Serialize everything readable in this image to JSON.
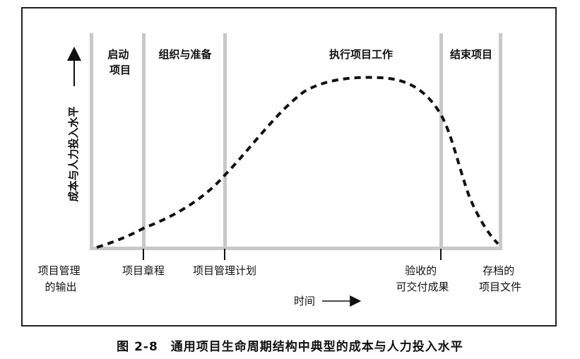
{
  "phases": [
    {
      "label_lines": [
        "启动",
        "项目"
      ]
    },
    {
      "label_lines": [
        "组织与准备"
      ]
    },
    {
      "label_lines": [
        "执行项目工作"
      ]
    },
    {
      "label_lines": [
        "结束项目"
      ]
    }
  ],
  "y_axis_label": "成本与人力投入水平",
  "time_label": "时间",
  "milestones": [
    {
      "label_lines": [
        "项目管理",
        "的输出"
      ]
    },
    {
      "label_lines": [
        "项目章程"
      ]
    },
    {
      "label_lines": [
        "项目管理计划"
      ]
    },
    {
      "label_lines": [
        "验收的",
        "可交付成果"
      ]
    },
    {
      "label_lines": [
        "存档的",
        "项目文件"
      ]
    }
  ],
  "caption": "图 2-8　通用项目生命周期结构中典型的成本与人力投入水平",
  "colors": {
    "line": "#111111",
    "axis_band": "#c8c8c8",
    "frame": "#222222"
  }
}
